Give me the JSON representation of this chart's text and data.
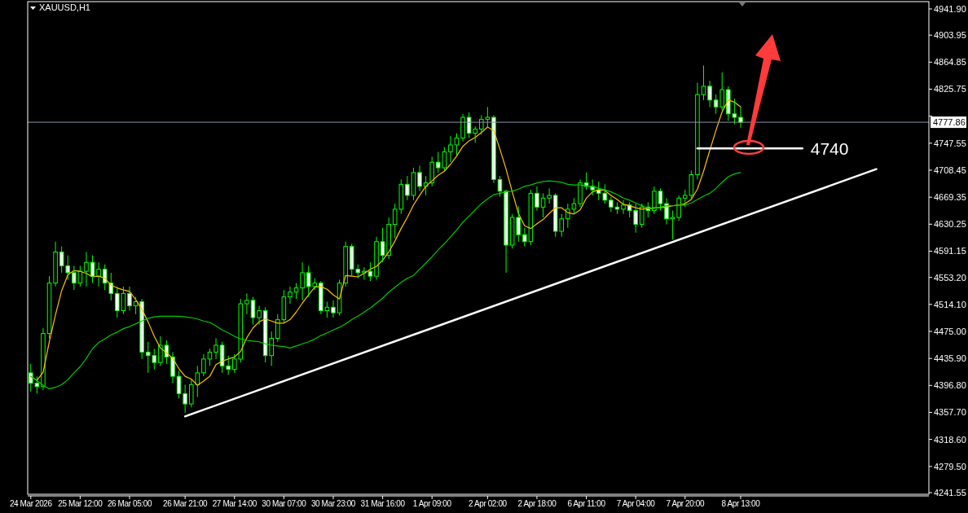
{
  "chart_data": {
    "type": "candlestick",
    "title": "XAUUSD,H1",
    "color": "#00ff00",
    "categories": [
      "24 Mar 2026",
      null,
      null,
      null,
      null,
      null,
      null,
      null,
      "25 Mar 12:00",
      null,
      null,
      null,
      null,
      null,
      null,
      null,
      "26 Mar 05:00",
      null,
      null,
      null,
      null,
      null,
      null,
      null,
      null,
      "26 Mar 21:00",
      null,
      null,
      null,
      null,
      null,
      null,
      null,
      "27 Mar 14:00",
      null,
      null,
      null,
      null,
      null,
      null,
      null,
      "30 Mar 07:00",
      null,
      null,
      null,
      null,
      null,
      null,
      null,
      "30 Mar 23:00",
      null,
      null,
      null,
      null,
      null,
      null,
      null,
      "31 Mar 16:00",
      null,
      null,
      null,
      null,
      null,
      null,
      null,
      "1 Apr 09:00",
      null,
      null,
      null,
      null,
      null,
      null,
      null,
      null,
      "2 Apr 02:00",
      null,
      null,
      null,
      null,
      null,
      null,
      null,
      "2 Apr 18:00",
      null,
      null,
      null,
      null,
      null,
      null,
      null,
      "6 Apr 11:00",
      null,
      null,
      null,
      null,
      null,
      null,
      null,
      "7 Apr 04:00",
      null,
      null,
      null,
      null,
      null,
      null,
      null,
      "7 Apr 20:00",
      null,
      null,
      null,
      null,
      null,
      null,
      null,
      null,
      "8 Apr 13:00",
      null,
      null,
      null,
      null,
      null,
      null,
      null,
      null,
      null,
      null,
      null,
      null,
      null,
      null,
      null,
      null,
      null,
      null,
      null,
      null,
      null,
      null,
      null,
      null,
      null,
      null,
      null,
      null,
      null,
      null
    ],
    "ohlc": [
      [
        4415,
        4428,
        4388,
        4400
      ],
      [
        4400,
        4410,
        4385,
        4395
      ],
      [
        4395,
        4480,
        4390,
        4472
      ],
      [
        4472,
        4555,
        4465,
        4545
      ],
      [
        4545,
        4605,
        4540,
        4590
      ],
      [
        4590,
        4598,
        4560,
        4570
      ],
      [
        4570,
        4585,
        4550,
        4560
      ],
      [
        4560,
        4570,
        4535,
        4545
      ],
      [
        4545,
        4570,
        4540,
        4562
      ],
      [
        4562,
        4590,
        4540,
        4575
      ],
      [
        4575,
        4585,
        4545,
        4555
      ],
      [
        4555,
        4575,
        4540,
        4565
      ],
      [
        4565,
        4572,
        4535,
        4545
      ],
      [
        4545,
        4560,
        4520,
        4530
      ],
      [
        4530,
        4540,
        4495,
        4505
      ],
      [
        4505,
        4540,
        4500,
        4530
      ],
      [
        4530,
        4540,
        4505,
        4512
      ],
      [
        4512,
        4525,
        4500,
        4518
      ],
      [
        4518,
        4522,
        4435,
        4445
      ],
      [
        4445,
        4460,
        4415,
        4440
      ],
      [
        4440,
        4450,
        4420,
        4430
      ],
      [
        4430,
        4468,
        4425,
        4455
      ],
      [
        4455,
        4462,
        4428,
        4438
      ],
      [
        4438,
        4445,
        4400,
        4410
      ],
      [
        4410,
        4418,
        4378,
        4385
      ],
      [
        4385,
        4398,
        4357,
        4370
      ],
      [
        4370,
        4405,
        4365,
        4398
      ],
      [
        4398,
        4425,
        4380,
        4415
      ],
      [
        4415,
        4442,
        4410,
        4435
      ],
      [
        4435,
        4450,
        4425,
        4445
      ],
      [
        4445,
        4465,
        4435,
        4455
      ],
      [
        4455,
        4460,
        4415,
        4425
      ],
      [
        4425,
        4440,
        4412,
        4420
      ],
      [
        4420,
        4442,
        4415,
        4435
      ],
      [
        4435,
        4522,
        4430,
        4515
      ],
      [
        4515,
        4530,
        4500,
        4520
      ],
      [
        4520,
        4525,
        4485,
        4495
      ],
      [
        4495,
        4512,
        4485,
        4505
      ],
      [
        4505,
        4510,
        4430,
        4440
      ],
      [
        4440,
        4475,
        4425,
        4465
      ],
      [
        4465,
        4500,
        4460,
        4492
      ],
      [
        4492,
        4535,
        4488,
        4525
      ],
      [
        4525,
        4540,
        4515,
        4532
      ],
      [
        4532,
        4545,
        4522,
        4538
      ],
      [
        4538,
        4575,
        4520,
        4560
      ],
      [
        4560,
        4570,
        4525,
        4540
      ],
      [
        4540,
        4552,
        4535,
        4545
      ],
      [
        4545,
        4548,
        4500,
        4505
      ],
      [
        4505,
        4518,
        4495,
        4510
      ],
      [
        4510,
        4520,
        4495,
        4502
      ],
      [
        4502,
        4550,
        4498,
        4545
      ],
      [
        4545,
        4605,
        4540,
        4598
      ],
      [
        4598,
        4602,
        4555,
        4565
      ],
      [
        4565,
        4572,
        4552,
        4560
      ],
      [
        4560,
        4568,
        4550,
        4562
      ],
      [
        4562,
        4575,
        4548,
        4555
      ],
      [
        4555,
        4612,
        4550,
        4605
      ],
      [
        4605,
        4625,
        4575,
        4585
      ],
      [
        4585,
        4640,
        4580,
        4630
      ],
      [
        4630,
        4660,
        4610,
        4652
      ],
      [
        4652,
        4695,
        4645,
        4688
      ],
      [
        4688,
        4700,
        4665,
        4672
      ],
      [
        4672,
        4712,
        4665,
        4705
      ],
      [
        4705,
        4715,
        4678,
        4685
      ],
      [
        4685,
        4700,
        4672,
        4690
      ],
      [
        4690,
        4728,
        4685,
        4720
      ],
      [
        4720,
        4735,
        4705,
        4712
      ],
      [
        4712,
        4742,
        4708,
        4735
      ],
      [
        4735,
        4758,
        4720,
        4745
      ],
      [
        4745,
        4762,
        4730,
        4755
      ],
      [
        4755,
        4790,
        4750,
        4785
      ],
      [
        4785,
        4792,
        4755,
        4762
      ],
      [
        4762,
        4772,
        4748,
        4768
      ],
      [
        4768,
        4788,
        4760,
        4782
      ],
      [
        4782,
        4800,
        4770,
        4785
      ],
      [
        4785,
        4788,
        4690,
        4695
      ],
      [
        4695,
        4700,
        4670,
        4678
      ],
      [
        4678,
        4680,
        4560,
        4600
      ],
      [
        4600,
        4645,
        4595,
        4640
      ],
      [
        4640,
        4656,
        4605,
        4615
      ],
      [
        4615,
        4625,
        4598,
        4605
      ],
      [
        4605,
        4680,
        4600,
        4675
      ],
      [
        4675,
        4685,
        4650,
        4655
      ],
      [
        4655,
        4675,
        4640,
        4668
      ],
      [
        4668,
        4682,
        4660,
        4672
      ],
      [
        4672,
        4675,
        4612,
        4620
      ],
      [
        4620,
        4645,
        4612,
        4638
      ],
      [
        4638,
        4660,
        4625,
        4652
      ],
      [
        4652,
        4668,
        4645,
        4660
      ],
      [
        4660,
        4695,
        4655,
        4690
      ],
      [
        4690,
        4705,
        4680,
        4685
      ],
      [
        4685,
        4695,
        4672,
        4680
      ],
      [
        4680,
        4692,
        4665,
        4675
      ],
      [
        4675,
        4688,
        4660,
        4665
      ],
      [
        4665,
        4670,
        4648,
        4655
      ],
      [
        4655,
        4662,
        4645,
        4652
      ],
      [
        4652,
        4665,
        4645,
        4658
      ],
      [
        4658,
        4662,
        4640,
        4650
      ],
      [
        4650,
        4660,
        4618,
        4630
      ],
      [
        4630,
        4660,
        4625,
        4655
      ],
      [
        4655,
        4662,
        4640,
        4650
      ],
      [
        4650,
        4685,
        4645,
        4678
      ],
      [
        4678,
        4682,
        4650,
        4660
      ],
      [
        4660,
        4668,
        4630,
        4638
      ],
      [
        4638,
        4650,
        4608,
        4640
      ],
      [
        4640,
        4672,
        4635,
        4668
      ],
      [
        4668,
        4680,
        4655,
        4672
      ],
      [
        4672,
        4708,
        4665,
        4702
      ],
      [
        4702,
        4835,
        4695,
        4818
      ],
      [
        4818,
        4860,
        4810,
        4830
      ],
      [
        4830,
        4838,
        4800,
        4810
      ],
      [
        4810,
        4818,
        4790,
        4800
      ],
      [
        4800,
        4850,
        4795,
        4825
      ],
      [
        4825,
        4830,
        4780,
        4790
      ],
      [
        4790,
        4812,
        4775,
        4785
      ],
      [
        4785,
        4800,
        4770,
        4777.86
      ],
      null,
      null,
      null,
      null,
      null,
      null,
      null,
      null,
      null,
      null,
      null,
      null,
      null,
      null,
      null,
      null,
      null,
      null,
      null,
      null,
      null,
      null,
      null,
      null,
      null,
      null,
      null,
      null,
      null,
      null
    ],
    "series": [
      {
        "type": "line",
        "color": "#ffc000",
        "values": [
          4410,
          4404,
          4416,
          4460,
          4499,
          4534,
          4557,
          4563,
          4562,
          4559,
          4554,
          4555,
          4552,
          4542,
          4538,
          4535,
          4533,
          4521,
          4507,
          4489,
          4468,
          4451,
          4444,
          4436,
          4421,
          4410,
          4406,
          4397,
          4403,
          4410,
          4427,
          4432,
          4435,
          4438,
          4446,
          4466,
          4480,
          4489,
          4493,
          4490,
          4487,
          4487,
          4492,
          4503,
          4516,
          4528,
          4539,
          4540,
          4536,
          4528,
          4522,
          4556,
          4555,
          4554,
          4559,
          4565,
          4569,
          4578,
          4590,
          4606,
          4624,
          4640,
          4658,
          4672,
          4685,
          4693,
          4701,
          4707,
          4717,
          4729,
          4743,
          4751,
          4756,
          4763,
          4771,
          4766,
          4739,
          4710,
          4677,
          4646,
          4628,
          4624,
          4631,
          4637,
          4646,
          4654,
          4654,
          4647,
          4645,
          4651,
          4668,
          4677,
          4680,
          4679,
          4672,
          4666,
          4659,
          4657,
          4654,
          4652,
          4653,
          4654,
          4654,
          4655,
          4657,
          4658,
          4660,
          4666,
          4681,
          4707,
          4737,
          4766,
          4793,
          4810,
          4807,
          4800,
          null,
          null,
          null,
          null,
          null,
          null,
          null,
          null,
          null,
          null,
          null,
          null,
          null,
          null,
          null,
          null,
          null,
          null,
          null,
          null,
          null,
          null,
          null,
          null,
          null,
          null,
          null,
          null,
          null,
          null
        ]
      },
      {
        "type": "line",
        "color": "#00c800",
        "values": [
          4410,
          4404,
          4397,
          4392,
          4394,
          4398,
          4405,
          4415,
          4424,
          4436,
          4450,
          4459,
          4464,
          4470,
          4474,
          4479,
          4482,
          4486,
          4490,
          4494,
          4496,
          4497,
          4497,
          4497,
          4497,
          4496,
          4495,
          4493,
          4490,
          4488,
          4483,
          4477,
          4473,
          4468,
          4464,
          4462,
          4461,
          4460,
          4457,
          4455,
          4454,
          4453,
          4451,
          4454,
          4457,
          4460,
          4464,
          4469,
          4473,
          4477,
          4481,
          4486,
          4492,
          4497,
          4503,
          4509,
          4516,
          4523,
          4532,
          4539,
          4546,
          4552,
          4556,
          4565,
          4574,
          4583,
          4593,
          4602,
          4612,
          4622,
          4633,
          4642,
          4651,
          4660,
          4667,
          4673,
          4675,
          4677,
          4678,
          4681,
          4685,
          4687,
          4690,
          4692,
          4693,
          4692,
          4691,
          4688,
          4687,
          4687,
          4686,
          4685,
          4682,
          4680,
          4677,
          4673,
          4668,
          4665,
          4661,
          4657,
          4653,
          4653,
          4655,
          4657,
          4657,
          4658,
          4658,
          4661,
          4666,
          4671,
          4675,
          4682,
          4691,
          4699,
          4703,
          4705,
          null,
          null,
          null,
          null,
          null,
          null,
          null,
          null,
          null,
          null,
          null,
          null,
          null,
          null,
          null,
          null,
          null,
          null,
          null,
          null,
          null,
          null,
          null,
          null,
          null,
          null,
          null,
          null,
          null,
          null
        ]
      },
      {
        "type": "line",
        "color": "#ffffff",
        "values": [
          null,
          null,
          null,
          null,
          null,
          null,
          null,
          null,
          null,
          null,
          null,
          null,
          null,
          null,
          null,
          null,
          null,
          null,
          null,
          null,
          null,
          null,
          null,
          null,
          null,
          4352,
          null,
          null,
          null,
          null,
          null,
          null,
          null,
          null,
          null,
          null,
          null,
          null,
          null,
          null,
          null,
          null,
          null,
          null,
          null,
          null,
          null,
          null,
          null,
          null,
          null,
          null,
          null,
          null,
          null,
          null,
          null,
          null,
          null,
          null,
          null,
          null,
          null,
          null,
          null,
          null,
          null,
          null,
          null,
          null,
          null,
          null,
          null,
          null,
          null,
          null,
          null,
          null,
          null,
          null,
          null,
          null,
          null,
          null,
          null,
          null,
          null,
          null,
          null,
          null,
          null,
          null,
          null,
          null,
          null,
          null,
          null,
          null,
          null,
          null,
          null,
          null,
          null,
          null,
          null,
          null,
          null,
          null,
          null,
          null,
          null,
          null,
          null,
          null,
          null,
          null,
          null,
          null,
          null,
          null,
          null,
          null,
          null,
          null,
          null,
          null,
          null,
          null,
          null,
          null,
          null,
          null,
          null,
          null,
          null,
          null,
          null,
          4710,
          null,
          null,
          null,
          null,
          null,
          null,
          null,
          null
        ]
      },
      {
        "type": "line",
        "color": "#ffffff",
        "values": [
          null,
          null,
          null,
          null,
          null,
          null,
          null,
          null,
          null,
          null,
          null,
          null,
          null,
          null,
          null,
          null,
          null,
          null,
          null,
          null,
          null,
          null,
          null,
          null,
          null,
          null,
          null,
          null,
          null,
          null,
          null,
          null,
          null,
          null,
          null,
          null,
          null,
          null,
          null,
          null,
          null,
          null,
          null,
          null,
          null,
          null,
          null,
          null,
          null,
          null,
          null,
          null,
          null,
          null,
          null,
          null,
          null,
          null,
          null,
          null,
          null,
          null,
          null,
          null,
          null,
          null,
          null,
          null,
          null,
          null,
          null,
          null,
          null,
          null,
          null,
          null,
          null,
          null,
          null,
          null,
          null,
          null,
          null,
          null,
          null,
          null,
          null,
          null,
          null,
          null,
          null,
          null,
          null,
          null,
          null,
          null,
          null,
          null,
          null,
          null,
          null,
          null,
          null,
          null,
          null,
          null,
          null,
          null,
          4740,
          4740,
          4740,
          4740,
          4740,
          4740,
          4740,
          4740,
          4740,
          4740,
          4740,
          4740,
          4740,
          4740,
          4740,
          4740,
          4740,
          4740,
          null,
          null,
          null,
          null,
          null,
          null,
          null,
          null,
          null,
          null,
          null,
          null,
          null,
          null,
          null,
          null,
          null,
          null,
          null,
          null
        ]
      }
    ],
    "ref_lines": [
      {
        "axis": "y",
        "value": 4777.86,
        "label": "4777.86",
        "color": "#8a96a8"
      }
    ],
    "annotations": [
      "4740"
    ],
    "ylim": [
      4239.2,
      4952.5
    ],
    "yticks": [
      {
        "value": 4941.9,
        "label": "4941.90"
      },
      {
        "value": 4903.95,
        "label": "4903.95"
      },
      {
        "value": 4864.85,
        "label": "4864.85"
      },
      {
        "value": 4825.75,
        "label": "4825.75"
      },
      {
        "value": 4786.65,
        "label": null
      },
      {
        "value": 4747.55,
        "label": "4747.55"
      },
      {
        "value": 4708.45,
        "label": "4708.45"
      },
      {
        "value": 4669.35,
        "label": "4669.35"
      },
      {
        "value": 4630.25,
        "label": "4630.25"
      },
      {
        "value": 4591.15,
        "label": "4591.15"
      },
      {
        "value": 4553.2,
        "label": "4553.20"
      },
      {
        "value": 4514.1,
        "label": "4514.10"
      },
      {
        "value": 4475,
        "label": "4475.00"
      },
      {
        "value": 4435.9,
        "label": "4435.90"
      },
      {
        "value": 4396.8,
        "label": "4396.80"
      },
      {
        "value": 4357.7,
        "label": "4357.70"
      },
      {
        "value": 4318.6,
        "label": "4318.60"
      },
      {
        "value": 4279.5,
        "label": "4279.50"
      },
      {
        "value": 4241.55,
        "label": "4241.55"
      }
    ]
  }
}
